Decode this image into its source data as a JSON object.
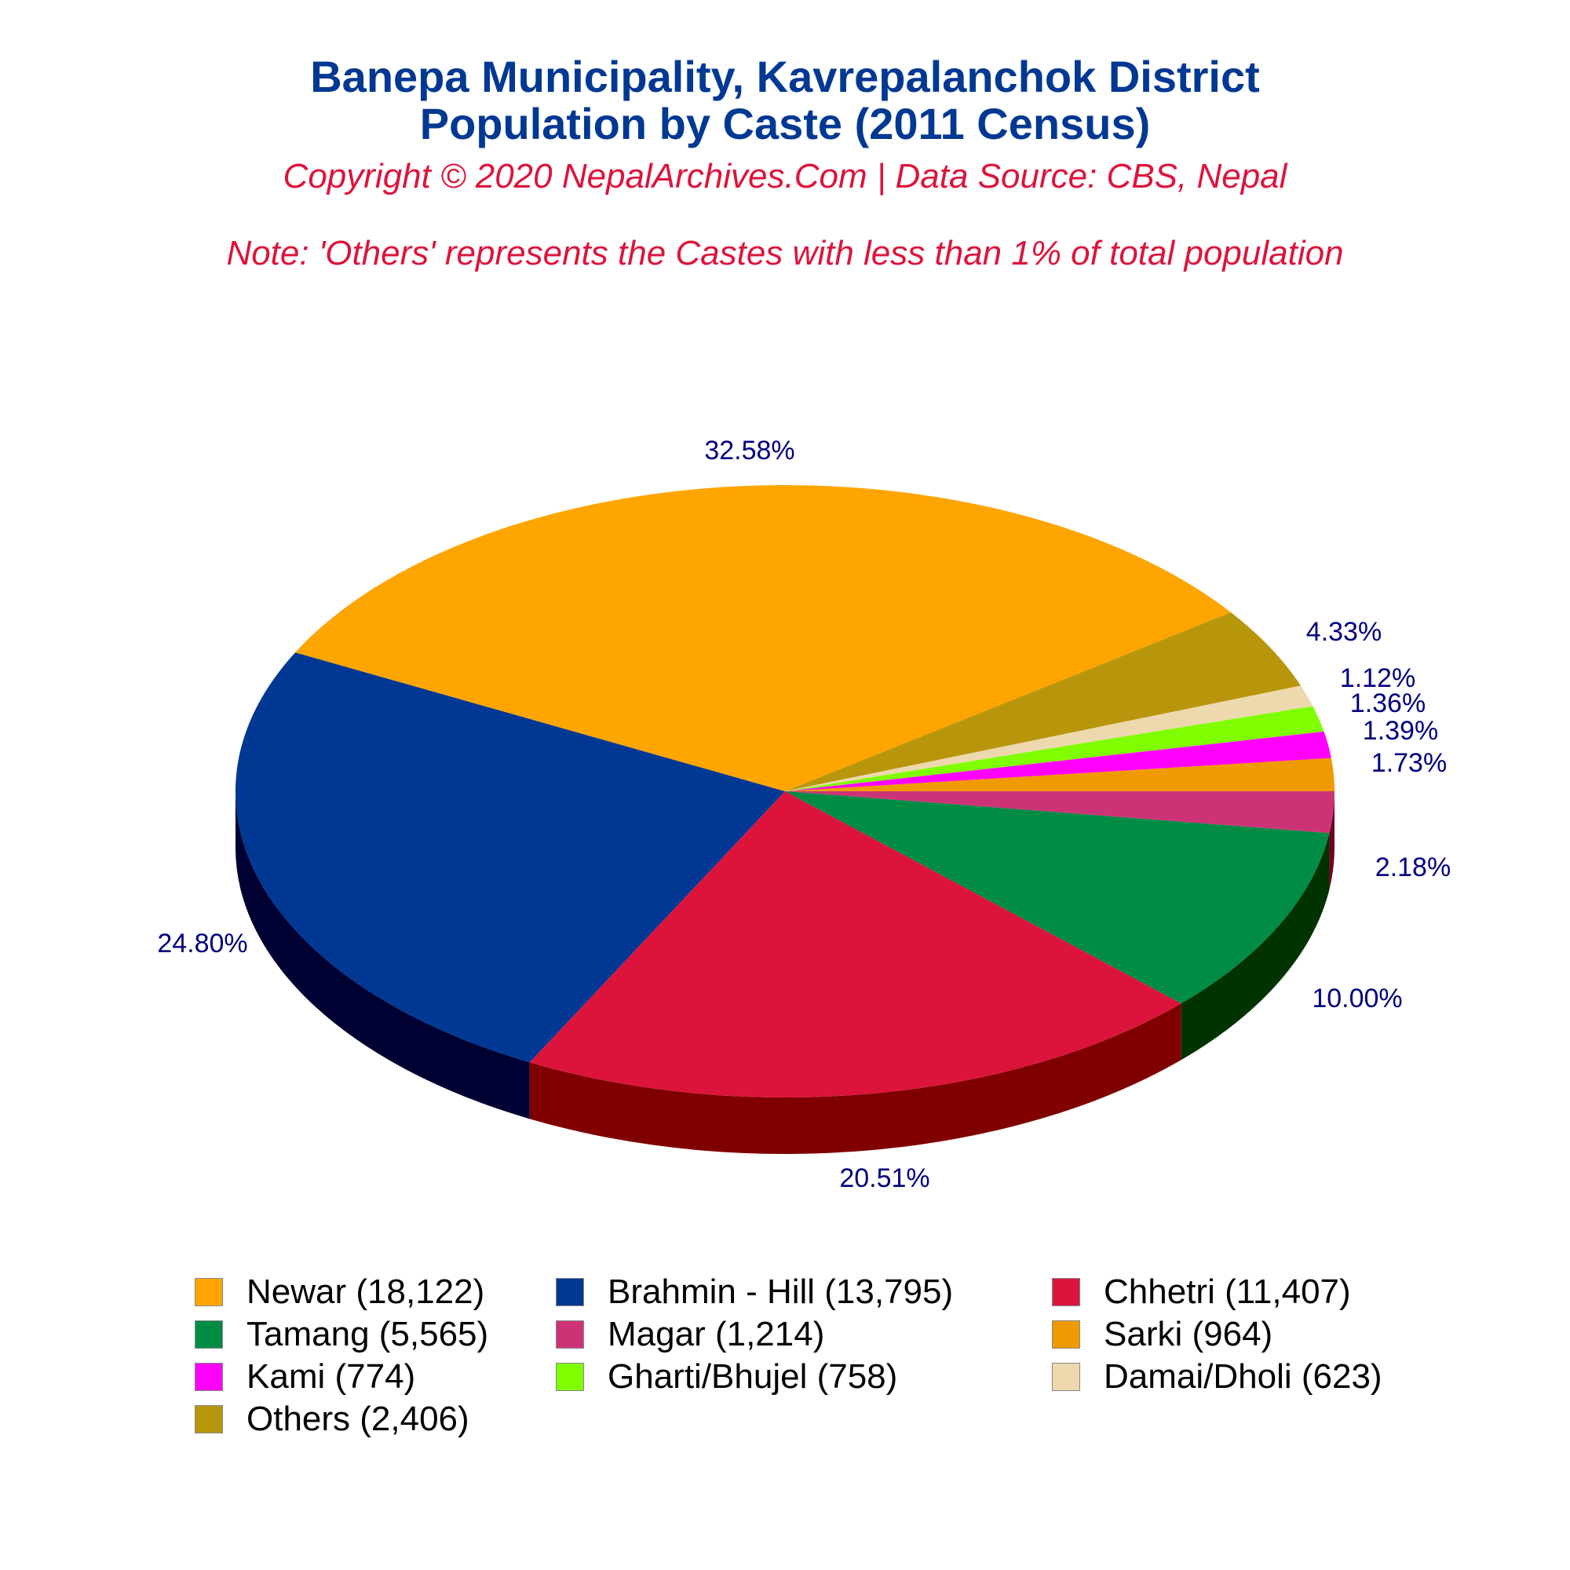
{
  "header": {
    "title_line1": "Banepa Municipality, Kavrepalanchok District",
    "title_line2": "Population by Caste (2011 Census)",
    "copyright": "Copyright © 2020 NepalArchives.Com | Data Source: CBS, Nepal",
    "note": "Note: 'Others' represents the Castes with less than 1% of total population"
  },
  "colors": {
    "title": "#003893",
    "subtitle": "#dc143c",
    "pct_label": "#000080"
  },
  "chart_data": {
    "type": "pie",
    "title": "Banepa Municipality, Kavrepalanchok District Population by Caste (2011 Census)",
    "subtitle": "Copyright © 2020 NepalArchives.Com | Data Source: CBS, Nepal",
    "annotation": "Note: 'Others' represents the Castes with less than 1% of total population",
    "legend_position": "bottom",
    "categories": [
      "Newar",
      "Brahmin - Hill",
      "Chhetri",
      "Tamang",
      "Magar",
      "Sarki",
      "Kami",
      "Gharti/Bhujel",
      "Damai/Dholi",
      "Others"
    ],
    "values": [
      18122,
      13795,
      11407,
      5565,
      1214,
      964,
      774,
      758,
      623,
      2406
    ],
    "percentages": [
      "32.58%",
      "24.80%",
      "20.51%",
      "10.00%",
      "2.18%",
      "1.73%",
      "1.39%",
      "1.36%",
      "1.12%",
      "4.33%"
    ],
    "colors": [
      "#ffa500",
      "#003893",
      "#dc143c",
      "#008c45",
      "#cc3377",
      "#ee9a00",
      "#ff00ff",
      "#7fff00",
      "#eed8ae",
      "#b8960c"
    ],
    "side_colors": [
      "#a06800",
      "#000033",
      "#800000",
      "#003300",
      "#700020",
      "#8a5a00",
      "#900090",
      "#4a9900",
      "#a08a60",
      "#6a5500"
    ]
  },
  "legend": {
    "items": [
      {
        "label": "Newar (18,122)",
        "color": "#ffa500"
      },
      {
        "label": "Brahmin - Hill (13,795)",
        "color": "#003893"
      },
      {
        "label": "Chhetri (11,407)",
        "color": "#dc143c"
      },
      {
        "label": "Tamang (5,565)",
        "color": "#008c45"
      },
      {
        "label": "Magar (1,214)",
        "color": "#cc3377"
      },
      {
        "label": "Sarki (964)",
        "color": "#ee9a00"
      },
      {
        "label": "Kami (774)",
        "color": "#ff00ff"
      },
      {
        "label": "Gharti/Bhujel (758)",
        "color": "#7fff00"
      },
      {
        "label": "Damai/Dholi (623)",
        "color": "#eed8ae"
      },
      {
        "label": "Others (2,406)",
        "color": "#b8960c"
      }
    ]
  }
}
